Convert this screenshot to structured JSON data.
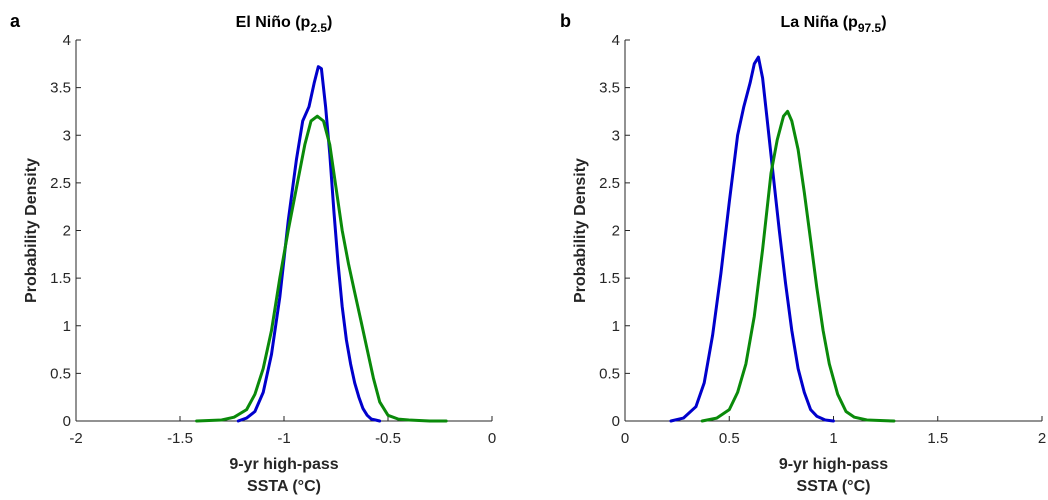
{
  "chart_data": [
    {
      "type": "line",
      "panel_label": "a",
      "title": "El Niño (p",
      "title_subscript": "2.5",
      "title_close": ")",
      "ylabel": "Probability Density",
      "xlabel_line1": "9-yr high-pass",
      "xlabel_line2": "SSTA (°C)",
      "xlim": [
        -2,
        0
      ],
      "ylim": [
        0,
        4
      ],
      "xticks": [
        -2,
        -1.5,
        -1,
        -0.5,
        0
      ],
      "xtick_labels": [
        "-2",
        "-1.5",
        "-1",
        "-0.5",
        "0"
      ],
      "yticks": [
        0,
        0.5,
        1,
        1.5,
        2,
        2.5,
        3,
        3.5,
        4
      ],
      "ytick_labels": [
        "0",
        "0.5",
        "1",
        "1.5",
        "2",
        "2.5",
        "3",
        "3.5",
        "4"
      ],
      "series": [
        {
          "color": "#0000cc",
          "x": [
            -1.22,
            -1.18,
            -1.14,
            -1.1,
            -1.06,
            -1.02,
            -0.98,
            -0.94,
            -0.91,
            -0.88,
            -0.855,
            -0.835,
            -0.82,
            -0.8,
            -0.78,
            -0.76,
            -0.74,
            -0.72,
            -0.7,
            -0.68,
            -0.66,
            -0.64,
            -0.62,
            -0.6,
            -0.58,
            -0.56,
            -0.54
          ],
          "y": [
            0.0,
            0.03,
            0.1,
            0.3,
            0.7,
            1.3,
            2.1,
            2.75,
            3.15,
            3.3,
            3.55,
            3.72,
            3.7,
            3.3,
            2.8,
            2.2,
            1.65,
            1.2,
            0.85,
            0.6,
            0.4,
            0.25,
            0.13,
            0.06,
            0.02,
            0.01,
            0.0
          ]
        },
        {
          "color": "#0a8a0a",
          "x": [
            -1.42,
            -1.3,
            -1.24,
            -1.18,
            -1.14,
            -1.1,
            -1.06,
            -1.02,
            -0.98,
            -0.94,
            -0.9,
            -0.87,
            -0.84,
            -0.81,
            -0.78,
            -0.75,
            -0.72,
            -0.69,
            -0.66,
            -0.63,
            -0.6,
            -0.57,
            -0.54,
            -0.5,
            -0.45,
            -0.4,
            -0.3,
            -0.22
          ],
          "y": [
            0.0,
            0.01,
            0.04,
            0.12,
            0.28,
            0.55,
            0.95,
            1.5,
            2.0,
            2.45,
            2.9,
            3.15,
            3.2,
            3.15,
            2.9,
            2.45,
            2.0,
            1.65,
            1.35,
            1.05,
            0.75,
            0.45,
            0.2,
            0.06,
            0.02,
            0.01,
            0.0,
            0.0
          ]
        }
      ]
    },
    {
      "type": "line",
      "panel_label": "b",
      "title": "La Niña (p",
      "title_subscript": "97.5",
      "title_close": ")",
      "ylabel": "Probability Density",
      "xlabel_line1": "9-yr high-pass",
      "xlabel_line2": "SSTA (°C)",
      "xlim": [
        0,
        2
      ],
      "ylim": [
        0,
        4
      ],
      "xticks": [
        0,
        0.5,
        1,
        1.5,
        2
      ],
      "xtick_labels": [
        "0",
        "0.5",
        "1",
        "1.5",
        "2"
      ],
      "yticks": [
        0,
        0.5,
        1,
        1.5,
        2,
        2.5,
        3,
        3.5,
        4
      ],
      "ytick_labels": [
        "0",
        "0.5",
        "1",
        "1.5",
        "2",
        "2.5",
        "3",
        "3.5",
        "4"
      ],
      "series": [
        {
          "color": "#0000cc",
          "x": [
            0.22,
            0.28,
            0.34,
            0.38,
            0.42,
            0.46,
            0.5,
            0.54,
            0.57,
            0.6,
            0.62,
            0.64,
            0.66,
            0.68,
            0.71,
            0.74,
            0.77,
            0.8,
            0.83,
            0.86,
            0.89,
            0.92,
            0.96,
            1.0
          ],
          "y": [
            0.0,
            0.03,
            0.15,
            0.4,
            0.9,
            1.55,
            2.3,
            3.0,
            3.3,
            3.55,
            3.75,
            3.82,
            3.6,
            3.2,
            2.6,
            2.0,
            1.45,
            0.95,
            0.55,
            0.3,
            0.12,
            0.05,
            0.01,
            0.0
          ]
        },
        {
          "color": "#0a8a0a",
          "x": [
            0.37,
            0.44,
            0.5,
            0.54,
            0.58,
            0.62,
            0.66,
            0.7,
            0.73,
            0.76,
            0.78,
            0.8,
            0.83,
            0.86,
            0.89,
            0.92,
            0.95,
            0.98,
            1.02,
            1.06,
            1.1,
            1.16,
            1.29
          ],
          "y": [
            0.0,
            0.03,
            0.12,
            0.3,
            0.6,
            1.1,
            1.8,
            2.6,
            2.95,
            3.2,
            3.25,
            3.15,
            2.85,
            2.4,
            1.9,
            1.4,
            0.95,
            0.6,
            0.28,
            0.1,
            0.04,
            0.01,
            0.0
          ]
        }
      ]
    }
  ]
}
